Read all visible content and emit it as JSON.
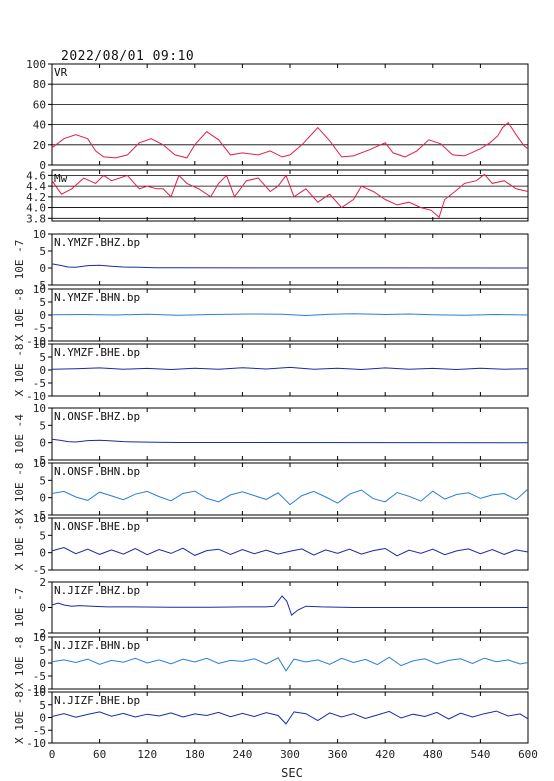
{
  "title": "2022/08/01 09:10",
  "xlabel": "SEC",
  "chart_data": {
    "type": "line",
    "title": "2022/08/01 09:10",
    "xlabel": "SEC",
    "xlim": [
      0,
      600
    ],
    "xticks": [
      0,
      60,
      120,
      180,
      240,
      300,
      360,
      420,
      480,
      540,
      600
    ],
    "panels": [
      {
        "label": "VR",
        "ylabel": "",
        "ylim": [
          0,
          100
        ],
        "yticks": [
          0,
          20,
          40,
          60,
          80,
          100
        ],
        "grid": true,
        "color": "#e0204a",
        "series": {
          "x": [
            0,
            15,
            30,
            45,
            55,
            65,
            80,
            95,
            110,
            125,
            140,
            155,
            170,
            180,
            195,
            210,
            225,
            240,
            260,
            275,
            290,
            300,
            315,
            335,
            350,
            365,
            380,
            400,
            420,
            430,
            445,
            460,
            475,
            490,
            505,
            520,
            540,
            552,
            562,
            568,
            575,
            585,
            595,
            600
          ],
          "y": [
            17,
            26,
            30,
            26,
            14,
            8,
            7,
            10,
            22,
            26,
            20,
            10,
            7,
            20,
            33,
            25,
            10,
            12,
            10,
            14,
            8,
            10,
            20,
            37,
            24,
            8,
            9,
            15,
            22,
            12,
            8,
            14,
            25,
            21,
            10,
            9,
            16,
            22,
            29,
            37,
            42,
            30,
            19,
            16
          ]
        }
      },
      {
        "label": "Mw",
        "ylabel": "",
        "ylim": [
          3.75,
          4.7
        ],
        "yticks": [
          3.8,
          4.0,
          4.2,
          4.4,
          4.6
        ],
        "grid": true,
        "color": "#e0204a",
        "series": {
          "x": [
            0,
            12,
            25,
            40,
            55,
            65,
            75,
            85,
            95,
            110,
            120,
            132,
            140,
            150,
            160,
            170,
            185,
            200,
            210,
            220,
            230,
            245,
            260,
            275,
            285,
            295,
            305,
            320,
            335,
            350,
            365,
            380,
            390,
            405,
            420,
            435,
            450,
            465,
            478,
            488,
            495,
            508,
            520,
            535,
            545,
            555,
            570,
            585,
            600
          ],
          "y": [
            4.5,
            4.25,
            4.35,
            4.55,
            4.45,
            4.6,
            4.5,
            4.55,
            4.6,
            4.35,
            4.4,
            4.35,
            4.35,
            4.2,
            4.6,
            4.45,
            4.35,
            4.2,
            4.45,
            4.6,
            4.2,
            4.5,
            4.55,
            4.3,
            4.4,
            4.6,
            4.2,
            4.35,
            4.1,
            4.25,
            4.0,
            4.15,
            4.4,
            4.3,
            4.15,
            4.05,
            4.1,
            4.0,
            3.95,
            3.82,
            4.15,
            4.3,
            4.45,
            4.5,
            4.62,
            4.45,
            4.5,
            4.35,
            4.3
          ]
        }
      },
      {
        "label": "N.YMZF.BHZ.bp",
        "ylabel": "10E -7",
        "ylim": [
          -5,
          10
        ],
        "yticks": [
          -5,
          0,
          5,
          10
        ],
        "grid": false,
        "color": "#1a2aa8",
        "series": {
          "x": [
            0,
            10,
            20,
            30,
            45,
            60,
            75,
            90,
            110,
            130,
            160,
            600
          ],
          "y": [
            1.2,
            0.8,
            0.3,
            0.2,
            0.7,
            0.8,
            0.5,
            0.3,
            0.2,
            0.1,
            0.05,
            0
          ]
        }
      },
      {
        "label": "N.YMZF.BHN.bp",
        "ylabel": "X 10E -8",
        "ylim": [
          -10,
          10
        ],
        "yticks": [
          -10,
          -5,
          0,
          5,
          10
        ],
        "grid": false,
        "color": "#2a7ed8",
        "series": {
          "x": [
            0,
            40,
            80,
            120,
            160,
            200,
            250,
            290,
            320,
            350,
            380,
            420,
            450,
            480,
            520,
            560,
            600
          ],
          "y": [
            0.1,
            0.2,
            0,
            0.3,
            -0.1,
            0.2,
            0.4,
            0.3,
            -0.2,
            0.3,
            0.5,
            0.2,
            0.4,
            0.1,
            -0.1,
            0.2,
            0
          ]
        }
      },
      {
        "label": "N.YMZF.BHE.bp",
        "ylabel": "X 10E -8",
        "ylim": [
          -10,
          10
        ],
        "yticks": [
          -10,
          -5,
          0,
          5,
          10
        ],
        "grid": false,
        "color": "#1a2aa8",
        "series": {
          "x": [
            0,
            30,
            60,
            90,
            120,
            150,
            180,
            210,
            240,
            270,
            300,
            330,
            360,
            390,
            420,
            450,
            480,
            510,
            540,
            570,
            600
          ],
          "y": [
            0.3,
            0.5,
            0.8,
            0.3,
            0.6,
            0.2,
            0.7,
            0.3,
            0.9,
            0.4,
            1.0,
            0.3,
            0.7,
            0.2,
            0.8,
            0.3,
            0.6,
            0.2,
            0.7,
            0.3,
            0.5
          ]
        }
      },
      {
        "label": "N.ONSF.BHZ.bp",
        "ylabel": "10E -4",
        "ylim": [
          -5,
          10
        ],
        "yticks": [
          -5,
          0,
          5,
          10
        ],
        "grid": false,
        "color": "#1a2aa8",
        "series": {
          "x": [
            0,
            10,
            20,
            30,
            45,
            60,
            75,
            90,
            110,
            130,
            160,
            600
          ],
          "y": [
            1.0,
            0.7,
            0.3,
            0.2,
            0.6,
            0.7,
            0.5,
            0.3,
            0.2,
            0.1,
            0.05,
            0
          ]
        }
      },
      {
        "label": "N.ONSF.BHN.bp",
        "ylabel": "X 10E -8",
        "ylim": [
          -5,
          10
        ],
        "yticks": [
          -5,
          0,
          5,
          10
        ],
        "grid": false,
        "color": "#2a7ed8",
        "series": {
          "x": [
            0,
            15,
            30,
            45,
            60,
            75,
            90,
            105,
            120,
            135,
            150,
            165,
            180,
            195,
            210,
            225,
            240,
            255,
            270,
            285,
            300,
            315,
            330,
            345,
            360,
            375,
            390,
            405,
            420,
            435,
            450,
            465,
            480,
            495,
            510,
            525,
            540,
            555,
            570,
            585,
            600
          ],
          "y": [
            1.2,
            1.8,
            0.2,
            -0.8,
            1.6,
            0.5,
            -0.6,
            1.0,
            1.8,
            0.3,
            -0.9,
            1.2,
            1.9,
            -0.2,
            -1.2,
            0.8,
            1.7,
            0.6,
            -0.5,
            1.4,
            -2.0,
            0.6,
            1.8,
            0.2,
            -1.6,
            1.0,
            2.2,
            -0.3,
            -1.2,
            1.5,
            0.4,
            -1.0,
            1.9,
            -0.4,
            0.9,
            1.4,
            -0.2,
            0.8,
            1.2,
            -0.6,
            2.5
          ]
        }
      },
      {
        "label": "N.ONSF.BHE.bp",
        "ylabel": "X 10E -8",
        "ylim": [
          -5,
          10
        ],
        "yticks": [
          -5,
          0,
          5,
          10
        ],
        "grid": false,
        "color": "#1a2aa8",
        "series": {
          "x": [
            0,
            15,
            30,
            45,
            60,
            75,
            90,
            105,
            120,
            135,
            150,
            165,
            180,
            195,
            210,
            225,
            240,
            255,
            270,
            285,
            300,
            315,
            330,
            345,
            360,
            375,
            390,
            405,
            420,
            435,
            450,
            465,
            480,
            495,
            510,
            525,
            540,
            555,
            570,
            585,
            600
          ],
          "y": [
            0.5,
            1.5,
            -0.3,
            1.0,
            -0.5,
            0.8,
            -0.4,
            1.2,
            -0.6,
            0.9,
            -0.2,
            1.3,
            -0.8,
            0.6,
            1.0,
            -0.5,
            0.9,
            -0.3,
            0.7,
            -0.4,
            0.4,
            1.1,
            -0.7,
            0.8,
            -0.2,
            1.0,
            -0.4,
            0.6,
            1.2,
            -0.9,
            0.7,
            -0.2,
            1.0,
            -0.6,
            0.5,
            1.1,
            -0.3,
            0.9,
            -0.5,
            0.8,
            0.2
          ]
        }
      },
      {
        "label": "N.JIZF.BHZ.bp",
        "ylabel": "10E -7",
        "ylim": [
          -2,
          2
        ],
        "yticks": [
          -2,
          0,
          2
        ],
        "grid": false,
        "color": "#1a2aa8",
        "series": {
          "x": [
            0,
            8,
            15,
            25,
            35,
            50,
            70,
            100,
            150,
            200,
            240,
            270,
            280,
            290,
            296,
            302,
            310,
            320,
            340,
            380,
            600
          ],
          "y": [
            0.2,
            0.35,
            0.2,
            0.1,
            0.15,
            0.1,
            0.05,
            0.05,
            0.02,
            0.02,
            0.05,
            0.05,
            0.1,
            0.9,
            0.5,
            -0.6,
            -0.2,
            0.1,
            0.05,
            0,
            0
          ]
        }
      },
      {
        "label": "N.JIZF.BHN.bp",
        "ylabel": "X 10E -8",
        "ylim": [
          -10,
          10
        ],
        "yticks": [
          -10,
          -5,
          0,
          5,
          10
        ],
        "grid": false,
        "color": "#2a7ed8",
        "series": {
          "x": [
            0,
            15,
            30,
            45,
            60,
            75,
            90,
            105,
            120,
            135,
            150,
            165,
            180,
            195,
            210,
            225,
            240,
            255,
            270,
            285,
            295,
            305,
            320,
            335,
            350,
            365,
            380,
            395,
            410,
            425,
            440,
            455,
            470,
            485,
            500,
            515,
            530,
            545,
            560,
            575,
            590,
            600
          ],
          "y": [
            0.5,
            1.2,
            0.2,
            1.5,
            -0.5,
            1.0,
            0.3,
            1.8,
            0.0,
            1.2,
            -0.3,
            1.5,
            0.4,
            1.8,
            -0.2,
            1.0,
            0.6,
            1.6,
            -0.4,
            2.0,
            -3.0,
            1.5,
            0.4,
            1.2,
            -0.5,
            1.8,
            0.2,
            1.4,
            -0.6,
            2.2,
            -1.0,
            0.8,
            1.6,
            -0.3,
            1.0,
            1.6,
            -0.2,
            1.9,
            0.5,
            1.2,
            -0.4,
            0.2
          ]
        }
      },
      {
        "label": "N.JIZF.BHE.bp",
        "ylabel": "X 10E -8",
        "ylim": [
          -10,
          10
        ],
        "yticks": [
          -10,
          -5,
          0,
          5,
          10
        ],
        "grid": false,
        "color": "#1a2aa8",
        "series": {
          "x": [
            0,
            15,
            30,
            45,
            60,
            75,
            90,
            105,
            120,
            135,
            150,
            165,
            180,
            195,
            210,
            225,
            240,
            255,
            270,
            285,
            295,
            305,
            320,
            335,
            350,
            365,
            380,
            395,
            410,
            425,
            440,
            455,
            470,
            485,
            500,
            515,
            530,
            545,
            560,
            575,
            590,
            600
          ],
          "y": [
            0.4,
            1.5,
            0.1,
            1.2,
            2.2,
            0.5,
            1.6,
            0.2,
            1.3,
            0.6,
            1.8,
            0.2,
            1.4,
            0.8,
            2.0,
            0.3,
            1.6,
            0.4,
            1.9,
            0.8,
            -2.5,
            2.2,
            1.5,
            -1.2,
            1.8,
            0.2,
            1.5,
            -0.4,
            1.0,
            2.4,
            -0.2,
            1.3,
            0.4,
            2.0,
            -0.6,
            1.7,
            0.2,
            1.5,
            2.5,
            0.6,
            1.4,
            -0.5
          ]
        }
      }
    ]
  }
}
